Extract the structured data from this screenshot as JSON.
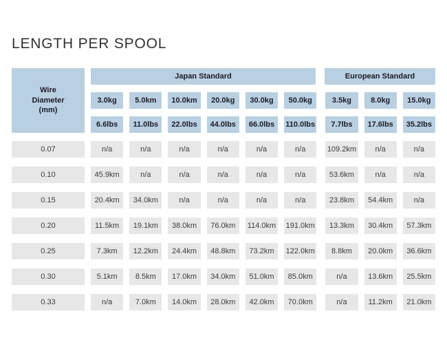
{
  "page": {
    "title": "LENGTH PER SPOOL"
  },
  "colors": {
    "header_blue": "#b9cfe2",
    "cell_gray": "#e7e7e7",
    "header_text": "#1b1b26",
    "cell_text": "#3c3c3c",
    "title_text": "#323232"
  },
  "chart_data": {
    "type": "table",
    "title": "LENGTH PER SPOOL",
    "row_header": "Wire Diameter (mm)",
    "groups": [
      {
        "label": "Japan Standard",
        "kg_headers": [
          "3.0kg",
          "5.0km",
          "10.0km",
          "20.0kg",
          "30.0kg",
          "50.0kg"
        ],
        "lbs_headers": [
          "6.6lbs",
          "11.0lbs",
          "22.0lbs",
          "44.0lbs",
          "66.0lbs",
          "110.0lbs"
        ]
      },
      {
        "label": "European Standard",
        "kg_headers": [
          "3.5kg",
          "8.0kg",
          "15.0kg"
        ],
        "lbs_headers": [
          "7.7lbs",
          "17.6lbs",
          "35.2lbs"
        ]
      }
    ],
    "rows": [
      {
        "diameter": "0.07",
        "values": [
          "n/a",
          "n/a",
          "n/a",
          "n/a",
          "n/a",
          "n/a",
          "109.2km",
          "n/a",
          "n/a"
        ]
      },
      {
        "diameter": "0.10",
        "values": [
          "45.9km",
          "n/a",
          "n/a",
          "n/a",
          "n/a",
          "n/a",
          "53.6km",
          "n/a",
          "n/a"
        ]
      },
      {
        "diameter": "0.15",
        "values": [
          "20.4km",
          "34.0km",
          "n/a",
          "n/a",
          "n/a",
          "n/a",
          "23.8km",
          "54.4km",
          "n/a"
        ]
      },
      {
        "diameter": "0.20",
        "values": [
          "11.5km",
          "19.1km",
          "38.0km",
          "76.0km",
          "114.0km",
          "191.0km",
          "13.3km",
          "30.4km",
          "57.3km"
        ]
      },
      {
        "diameter": "0.25",
        "values": [
          "7.3km",
          "12.2km",
          "24.4km",
          "48.8km",
          "73.2km",
          "122.0km",
          "8.8km",
          "20.0km",
          "36.6km"
        ]
      },
      {
        "diameter": "0.30",
        "values": [
          "5.1km",
          "8.5km",
          "17.0km",
          "34.0km",
          "51.0km",
          "85.0km",
          "n/a",
          "13.6km",
          "25.5km"
        ]
      },
      {
        "diameter": "0.33",
        "values": [
          "n/a",
          "7.0km",
          "14.0km",
          "28.0km",
          "42.0km",
          "70.0km",
          "n/a",
          "11.2km",
          "21.0km"
        ]
      }
    ]
  }
}
